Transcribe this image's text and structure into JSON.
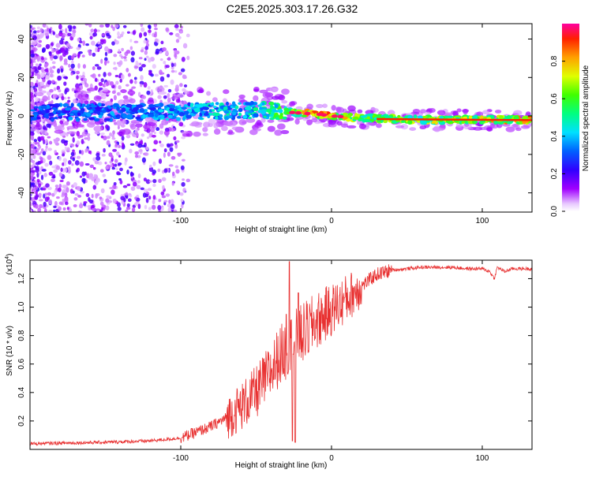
{
  "title": "C2E5.2025.303.17.26.G32",
  "colors": {
    "spectrum_core": "#6a00ff",
    "snr_line": "#e83030",
    "frame": "#000000"
  },
  "chart_data": [
    {
      "type": "heatmap",
      "name": "spectrogram",
      "xlabel": "Height of straight line (km)",
      "ylabel": "Frequency (Hz)",
      "xlim": [
        -200,
        133
      ],
      "ylim": [
        -50,
        48
      ],
      "xticks": [
        -100,
        0,
        100
      ],
      "xtick_labels": [
        "-100",
        "0",
        "100"
      ],
      "yticks": [
        -40,
        -20,
        0,
        20,
        40
      ],
      "ytick_labels": [
        "-40",
        "-20",
        "0",
        "20",
        "40"
      ],
      "colorbar": {
        "label": "Normalized spectral amplitude",
        "range": [
          0,
          1
        ],
        "ticks": [
          0.0,
          0.2,
          0.4,
          0.6,
          0.8
        ],
        "tick_labels": [
          "0.0",
          "0.2",
          "0.4",
          "0.6",
          "0.8"
        ]
      },
      "ridge": {
        "description_points_x": [
          -200,
          -100,
          -50,
          -30,
          -10,
          0,
          20,
          60,
          100,
          133
        ],
        "center_hz": [
          2,
          2,
          3,
          2,
          1,
          0,
          -1,
          -2,
          -2,
          -2
        ],
        "peak_amplitude": [
          0.35,
          0.45,
          0.55,
          0.7,
          0.95,
          0.95,
          0.7,
          0.75,
          0.85,
          0.9
        ]
      }
    },
    {
      "type": "line",
      "name": "snr",
      "xlabel": "Height of straight line (km)",
      "ylabel": "SNR (10 * v/v)",
      "ymultiplier": "(x10",
      "ymultiplier_exp": "4",
      "ymultiplier_close": ")",
      "xlim": [
        -200,
        133
      ],
      "ylim": [
        0,
        1.33
      ],
      "xticks": [
        -100,
        0,
        100
      ],
      "xtick_labels": [
        "-100",
        "0",
        "100"
      ],
      "yticks": [
        0.2,
        0.4,
        0.6,
        0.8,
        1.0,
        1.2
      ],
      "ytick_labels": [
        "0.2",
        "0.4",
        "0.6",
        "0.8",
        "1.0",
        "1.2"
      ],
      "series": [
        {
          "name": "SNR",
          "x": [
            -200,
            -150,
            -120,
            -100,
            -90,
            -80,
            -70,
            -60,
            -50,
            -40,
            -35,
            -28,
            -20,
            -10,
            0,
            10,
            20,
            30,
            40,
            50,
            60,
            70,
            80,
            90,
            100,
            105,
            108,
            110,
            115,
            120,
            133
          ],
          "y": [
            0.04,
            0.05,
            0.06,
            0.08,
            0.12,
            0.16,
            0.22,
            0.3,
            0.4,
            0.55,
            0.65,
            0.72,
            0.8,
            0.9,
            0.98,
            1.06,
            1.15,
            1.23,
            1.26,
            1.27,
            1.28,
            1.28,
            1.28,
            1.27,
            1.27,
            1.25,
            1.2,
            1.28,
            1.25,
            1.27,
            1.27
          ],
          "spikes": [
            {
              "x": -28,
              "y": 1.32
            },
            {
              "x": -26,
              "y": 0.06
            },
            {
              "x": -24,
              "y": 0.05
            },
            {
              "x": -22,
              "y": 1.1
            },
            {
              "x": -30,
              "y": 0.95
            }
          ]
        }
      ]
    }
  ]
}
